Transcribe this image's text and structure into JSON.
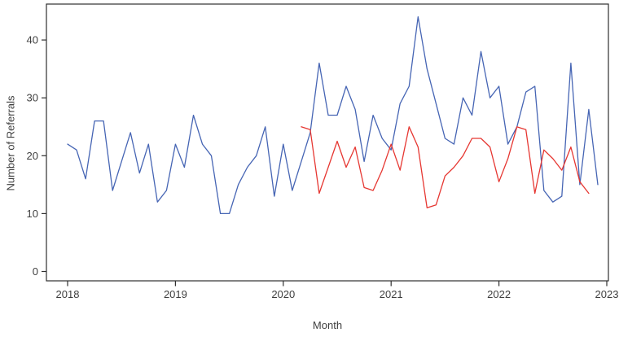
{
  "chart_data": {
    "type": "line",
    "title": "",
    "xlabel": "Month",
    "ylabel": "Number of Referrals",
    "x_tick_labels": [
      "2018",
      "2019",
      "2020",
      "2021",
      "2022",
      "2023"
    ],
    "y_ticks": [
      0,
      10,
      20,
      30,
      40
    ],
    "ylim": [
      0,
      46
    ],
    "grid": false,
    "legend": "none",
    "axis_color": "#2f2f2f",
    "tick_label_color": "#3e3e3e",
    "series": [
      {
        "name": "blue",
        "color": "#4665b4",
        "start_month": "2018-01",
        "values": [
          22,
          21,
          16,
          26,
          26,
          14,
          19,
          24,
          17,
          22,
          12,
          14,
          22,
          18,
          27,
          22,
          20,
          10,
          10,
          15,
          18,
          20,
          25,
          13,
          22,
          14,
          19,
          24,
          36,
          27,
          27,
          32,
          28,
          19,
          27,
          23,
          21,
          29,
          32,
          44,
          35,
          29,
          23,
          22,
          30,
          27,
          38,
          30,
          32,
          22,
          25,
          31,
          32,
          14,
          12,
          13,
          36,
          15,
          28,
          15
        ]
      },
      {
        "name": "red",
        "color": "#e63732",
        "start_month": "2020-03",
        "values": [
          25,
          24.5,
          13.5,
          18,
          22.5,
          18,
          21.5,
          14.5,
          14,
          17.5,
          22,
          17.5,
          25,
          21.5,
          11,
          11.5,
          16.5,
          18,
          20,
          23,
          23,
          21.5,
          15.5,
          19.5,
          25,
          24.5,
          13.5,
          21,
          19.5,
          17.5,
          21.5,
          15.5,
          13.5
        ]
      }
    ]
  }
}
